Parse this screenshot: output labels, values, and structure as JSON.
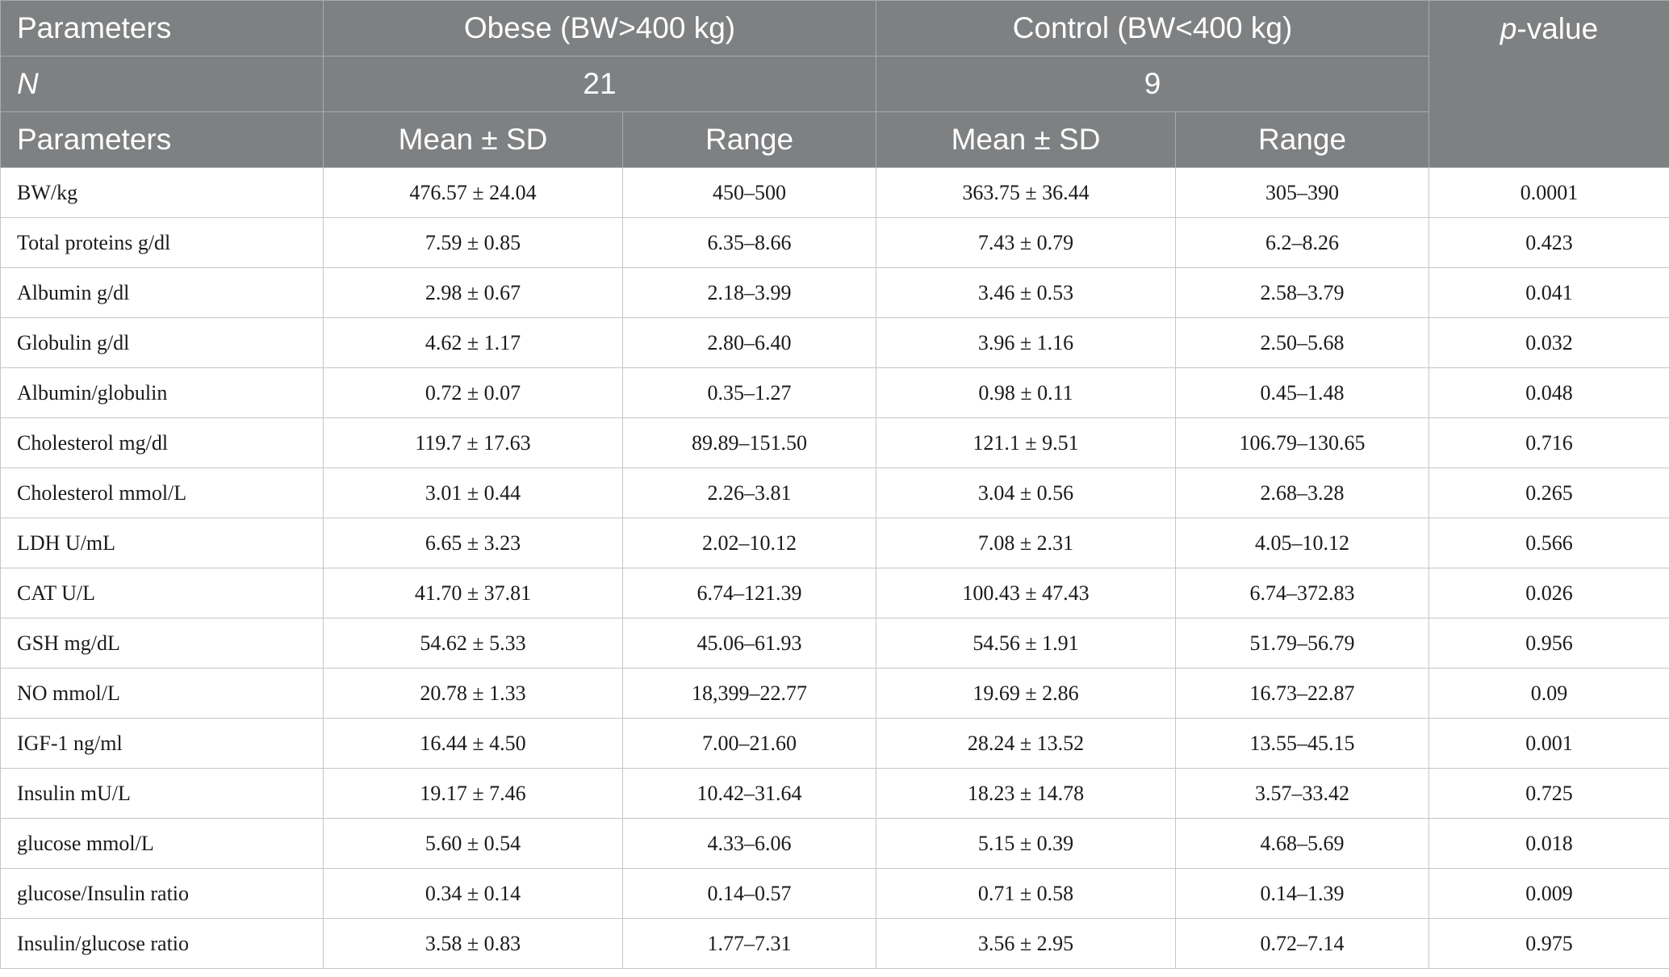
{
  "header": {
    "row1": {
      "parameters": "Parameters",
      "obese": "Obese (BW>400 kg)",
      "control": "Control (BW<400 kg)",
      "pvalue_italic": "p",
      "pvalue_rest": "-value"
    },
    "row2": {
      "n_label": "N",
      "obese_n": "21",
      "control_n": "9"
    },
    "row3": {
      "parameters": "Parameters",
      "obese_mean": "Mean ± SD",
      "obese_range": "Range",
      "control_mean": "Mean ± SD",
      "control_range": "Range"
    }
  },
  "rows": [
    {
      "param": "BW/kg",
      "obese_mean": "476.57 ± 24.04",
      "obese_range": "450–500",
      "control_mean": "363.75 ± 36.44",
      "control_range": "305–390",
      "p": "0.0001"
    },
    {
      "param": "Total proteins g/dl",
      "obese_mean": "7.59 ± 0.85",
      "obese_range": "6.35–8.66",
      "control_mean": "7.43 ± 0.79",
      "control_range": "6.2–8.26",
      "p": "0.423"
    },
    {
      "param": "Albumin g/dl",
      "obese_mean": "2.98 ± 0.67",
      "obese_range": "2.18–3.99",
      "control_mean": "3.46 ± 0.53",
      "control_range": "2.58–3.79",
      "p": "0.041"
    },
    {
      "param": "Globulin g/dl",
      "obese_mean": "4.62 ± 1.17",
      "obese_range": "2.80–6.40",
      "control_mean": "3.96 ± 1.16",
      "control_range": "2.50–5.68",
      "p": "0.032"
    },
    {
      "param": "Albumin/globulin",
      "obese_mean": "0.72 ± 0.07",
      "obese_range": "0.35–1.27",
      "control_mean": "0.98 ± 0.11",
      "control_range": "0.45–1.48",
      "p": "0.048"
    },
    {
      "param": "Cholesterol mg/dl",
      "obese_mean": "119.7 ± 17.63",
      "obese_range": "89.89–151.50",
      "control_mean": "121.1 ± 9.51",
      "control_range": "106.79–130.65",
      "p": "0.716"
    },
    {
      "param": "Cholesterol mmol/L",
      "obese_mean": "3.01 ± 0.44",
      "obese_range": "2.26–3.81",
      "control_mean": "3.04 ± 0.56",
      "control_range": "2.68–3.28",
      "p": "0.265"
    },
    {
      "param": "LDH U/mL",
      "obese_mean": "6.65 ± 3.23",
      "obese_range": "2.02–10.12",
      "control_mean": "7.08 ± 2.31",
      "control_range": "4.05–10.12",
      "p": "0.566"
    },
    {
      "param": "CAT U/L",
      "obese_mean": "41.70 ± 37.81",
      "obese_range": "6.74–121.39",
      "control_mean": "100.43 ± 47.43",
      "control_range": "6.74–372.83",
      "p": "0.026"
    },
    {
      "param": "GSH mg/dL",
      "obese_mean": "54.62 ± 5.33",
      "obese_range": "45.06–61.93",
      "control_mean": "54.56 ± 1.91",
      "control_range": "51.79–56.79",
      "p": "0.956"
    },
    {
      "param": "NO mmol/L",
      "obese_mean": "20.78 ± 1.33",
      "obese_range": "18,399–22.77",
      "control_mean": "19.69 ± 2.86",
      "control_range": "16.73–22.87",
      "p": "0.09"
    },
    {
      "param": "IGF-1 ng/ml",
      "obese_mean": "16.44 ± 4.50",
      "obese_range": "7.00–21.60",
      "control_mean": "28.24 ± 13.52",
      "control_range": "13.55–45.15",
      "p": "0.001"
    },
    {
      "param": "Insulin mU/L",
      "obese_mean": "19.17 ± 7.46",
      "obese_range": "10.42–31.64",
      "control_mean": "18.23 ± 14.78",
      "control_range": "3.57–33.42",
      "p": "0.725"
    },
    {
      "param": "glucose mmol/L",
      "obese_mean": "5.60 ± 0.54",
      "obese_range": "4.33–6.06",
      "control_mean": "5.15 ± 0.39",
      "control_range": "4.68–5.69",
      "p": "0.018"
    },
    {
      "param": "glucose/Insulin ratio",
      "obese_mean": "0.34 ± 0.14",
      "obese_range": "0.14–0.57",
      "control_mean": "0.71 ± 0.58",
      "control_range": "0.14–1.39",
      "p": "0.009"
    },
    {
      "param": "Insulin/glucose ratio",
      "obese_mean": "3.58 ± 0.83",
      "obese_range": "1.77–7.31",
      "control_mean": "3.56 ± 2.95",
      "control_range": "0.72–7.14",
      "p": "0.975"
    }
  ]
}
